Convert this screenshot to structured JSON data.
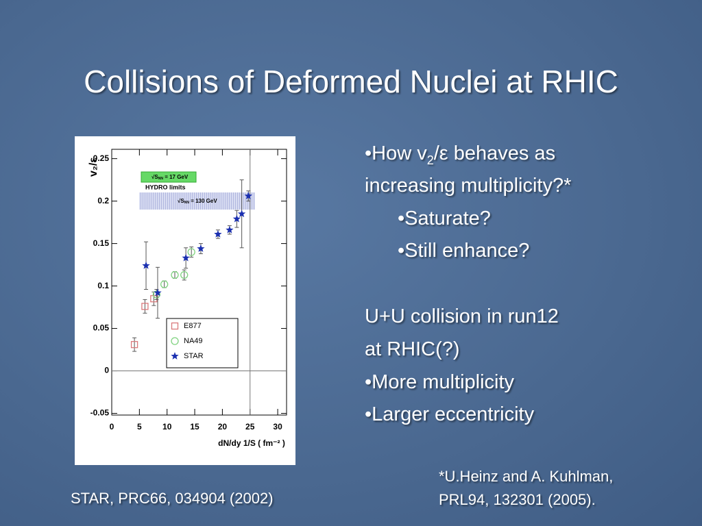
{
  "slide": {
    "title": "Collisions of Deformed Nuclei at RHIC",
    "bullet_symbol": "•",
    "question": {
      "pre": "How v",
      "sub": "2",
      "post": "/ε behaves as"
    },
    "question_cont": "increasing multiplicity?*",
    "sub_bullets": [
      "Saturate?",
      "Still enhance?"
    ],
    "uu_lines": [
      "U+U collision in run12",
      "at RHIC(?)"
    ],
    "uu_bullets": [
      "More multiplicity",
      "Larger eccentricity"
    ],
    "footnote": [
      "*U.Heinz and A. Kuhlman,",
      "PRL94, 132301 (2005)."
    ],
    "source": "STAR, PRC66, 034904 (2002)"
  },
  "chart_data": {
    "type": "scatter",
    "x_label": "dN/dy 1/S ( fm⁻² )",
    "y_label": "v₂/ε",
    "xlim": [
      0,
      31.6
    ],
    "ylim": [
      -0.052,
      0.261
    ],
    "xticks": [
      0,
      5,
      10,
      15,
      20,
      25,
      30
    ],
    "yticks": [
      -0.05,
      0,
      0.05,
      0.1,
      0.15,
      0.2,
      0.25
    ],
    "vlines": [
      25
    ],
    "hlines": [
      0
    ],
    "annotations": {
      "sps": {
        "pre": "√S",
        "sub": "NN",
        "post": " = 17 GeV"
      },
      "hydro": "HYDRO  limits",
      "rhic": {
        "pre": "√S",
        "sub": "NN",
        "post": " = 130 GeV"
      }
    },
    "series": [
      {
        "name": "E877",
        "color": "#d9797b",
        "marker": "square",
        "x": [
          4.1,
          6.0,
          7.6
        ],
        "values": [
          0.031,
          0.076,
          0.085
        ],
        "errors": [
          0.008,
          0.008,
          0.008
        ]
      },
      {
        "name": "NA49",
        "color": "#7fd27f",
        "marker": "circle",
        "x": [
          8.1,
          9.5,
          11.4,
          13.1,
          14.4
        ],
        "values": [
          0.09,
          0.102,
          0.113,
          0.113,
          0.14
        ],
        "errors": [
          0.006,
          0.004,
          0.004,
          0.006,
          0.006
        ]
      },
      {
        "name": "STAR",
        "color": "#1a2fb0",
        "marker": "star",
        "x": [
          6.2,
          8.3,
          13.4,
          16.1,
          19.2,
          21.3,
          22.6,
          23.5,
          24.7
        ],
        "values": [
          0.124,
          0.092,
          0.133,
          0.144,
          0.161,
          0.166,
          0.179,
          0.185,
          0.206
        ],
        "errors": [
          0.028,
          0.03,
          0.012,
          0.006,
          0.005,
          0.005,
          0.01,
          0.04,
          0.006
        ]
      }
    ]
  }
}
